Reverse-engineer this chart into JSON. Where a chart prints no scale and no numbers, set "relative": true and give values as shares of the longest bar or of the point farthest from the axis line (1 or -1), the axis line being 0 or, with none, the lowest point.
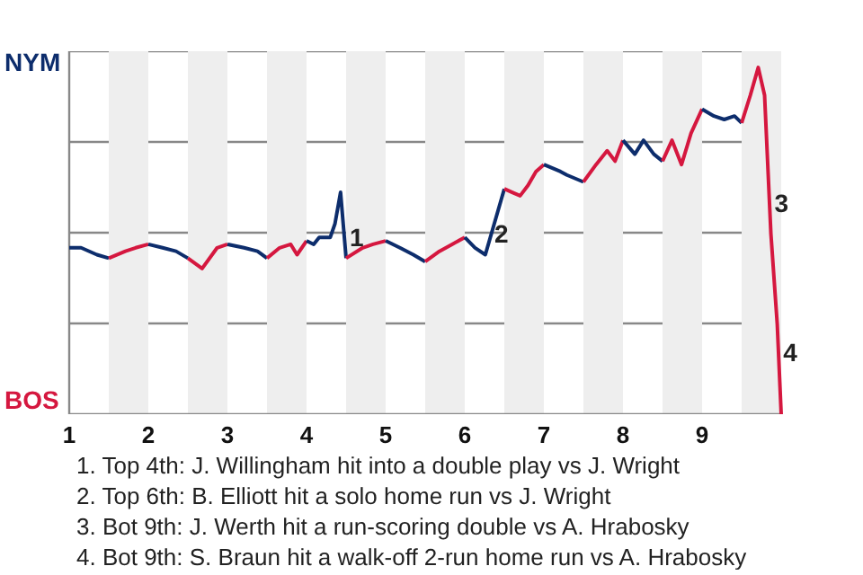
{
  "chart_data": {
    "type": "line",
    "relative": true,
    "grid": "y",
    "xlim": [
      1,
      10
    ],
    "xticks": [
      1,
      2,
      3,
      4,
      5,
      6,
      7,
      8,
      9
    ],
    "series": [
      {
        "color": "#0d2d6c",
        "x": [
          1,
          1.15,
          1.35,
          1.5
        ],
        "values": [
          0.48,
          0.48,
          0.46,
          0.45
        ]
      },
      {
        "color": "#d5173f",
        "x": [
          1.5,
          1.71,
          1.84,
          2
        ],
        "values": [
          0.45,
          0.47,
          0.48,
          0.49
        ]
      },
      {
        "color": "#0d2d6c",
        "x": [
          2,
          2.18,
          2.35,
          2.5
        ],
        "values": [
          0.49,
          0.48,
          0.47,
          0.45
        ]
      },
      {
        "color": "#d5173f",
        "x": [
          2.5,
          2.68,
          2.87,
          3
        ],
        "values": [
          0.45,
          0.42,
          0.48,
          0.49
        ]
      },
      {
        "color": "#0d2d6c",
        "x": [
          3,
          3.21,
          3.38,
          3.5
        ],
        "values": [
          0.49,
          0.48,
          0.47,
          0.45
        ]
      },
      {
        "color": "#d5173f",
        "x": [
          3.5,
          3.66,
          3.8,
          3.88,
          4
        ],
        "values": [
          0.45,
          0.48,
          0.49,
          0.46,
          0.5
        ]
      },
      {
        "color": "#0d2d6c",
        "x": [
          4,
          4.09,
          4.16,
          4.3,
          4.36,
          4.43,
          4.5
        ],
        "values": [
          0.5,
          0.49,
          0.51,
          0.51,
          0.55,
          0.64,
          0.45
        ]
      },
      {
        "color": "#d5173f",
        "x": [
          4.5,
          4.71,
          4.84,
          5
        ],
        "values": [
          0.45,
          0.48,
          0.49,
          0.5
        ]
      },
      {
        "color": "#0d2d6c",
        "x": [
          5,
          5.18,
          5.35,
          5.5
        ],
        "values": [
          0.5,
          0.48,
          0.46,
          0.44
        ]
      },
      {
        "color": "#d5173f",
        "x": [
          5.5,
          5.68,
          5.84,
          6
        ],
        "values": [
          0.44,
          0.47,
          0.49,
          0.51
        ]
      },
      {
        "color": "#0d2d6c",
        "x": [
          6,
          6.13,
          6.26,
          6.5
        ],
        "values": [
          0.51,
          0.48,
          0.46,
          0.65
        ]
      },
      {
        "color": "#d5173f",
        "x": [
          6.5,
          6.6,
          6.7,
          6.8,
          6.9,
          7
        ],
        "values": [
          0.65,
          0.64,
          0.63,
          0.66,
          0.7,
          0.72
        ]
      },
      {
        "color": "#0d2d6c",
        "x": [
          7,
          7.21,
          7.29,
          7.5
        ],
        "values": [
          0.72,
          0.7,
          0.69,
          0.67
        ]
      },
      {
        "color": "#d5173f",
        "x": [
          7.5,
          7.66,
          7.8,
          7.9,
          8
        ],
        "values": [
          0.67,
          0.72,
          0.76,
          0.73,
          0.79
        ]
      },
      {
        "color": "#0d2d6c",
        "x": [
          8,
          8.15,
          8.26,
          8.39,
          8.5
        ],
        "values": [
          0.79,
          0.75,
          0.79,
          0.75,
          0.73
        ]
      },
      {
        "color": "#d5173f",
        "x": [
          8.5,
          8.62,
          8.74,
          8.86,
          9
        ],
        "values": [
          0.73,
          0.79,
          0.72,
          0.81,
          0.88
        ]
      },
      {
        "color": "#0d2d6c",
        "x": [
          9,
          9.15,
          9.28,
          9.41,
          9.5
        ],
        "values": [
          0.88,
          0.86,
          0.85,
          0.86,
          0.84
        ]
      },
      {
        "color": "#d5173f",
        "x": [
          9.5,
          9.61,
          9.71,
          9.79,
          9.87,
          9.95,
          10
        ],
        "values": [
          0.84,
          0.92,
          1,
          0.92,
          0.52,
          0.26,
          0
        ]
      }
    ],
    "bands": [
      {
        "axis": "x",
        "from": 1.5,
        "to": 2,
        "color": "#eeeeee"
      },
      {
        "axis": "x",
        "from": 2.5,
        "to": 3,
        "color": "#eeeeee"
      },
      {
        "axis": "x",
        "from": 3.5,
        "to": 4,
        "color": "#eeeeee"
      },
      {
        "axis": "x",
        "from": 4.5,
        "to": 5,
        "color": "#eeeeee"
      },
      {
        "axis": "x",
        "from": 5.5,
        "to": 6,
        "color": "#eeeeee"
      },
      {
        "axis": "x",
        "from": 6.5,
        "to": 7,
        "color": "#eeeeee"
      },
      {
        "axis": "x",
        "from": 7.5,
        "to": 8,
        "color": "#eeeeee"
      },
      {
        "axis": "x",
        "from": 8.5,
        "to": 9,
        "color": "#eeeeee"
      },
      {
        "axis": "x",
        "from": 9.5,
        "to": 10,
        "color": "#eeeeee"
      }
    ],
    "annotations": [
      "NYM",
      "BOS",
      {
        "text": "1",
        "x": 4.5,
        "y": 0.51
      },
      {
        "text": "2",
        "x": 6.33,
        "y": 0.52
      },
      {
        "text": "3",
        "x": 9.87,
        "y": 0.61
      },
      {
        "text": "4",
        "x": 9.98,
        "y": 0.18
      },
      "1. Top 4th: J. Willingham hit into a double play vs J. Wright",
      "2. Top 6th: B. Elliott hit a solo home run vs J. Wright",
      "3. Bot 9th: J. Werth hit a run-scoring double vs A. Hrabosky",
      "4. Bot 9th: S. Braun hit a walk-off 2-run home run vs A. Hrabosky"
    ]
  }
}
